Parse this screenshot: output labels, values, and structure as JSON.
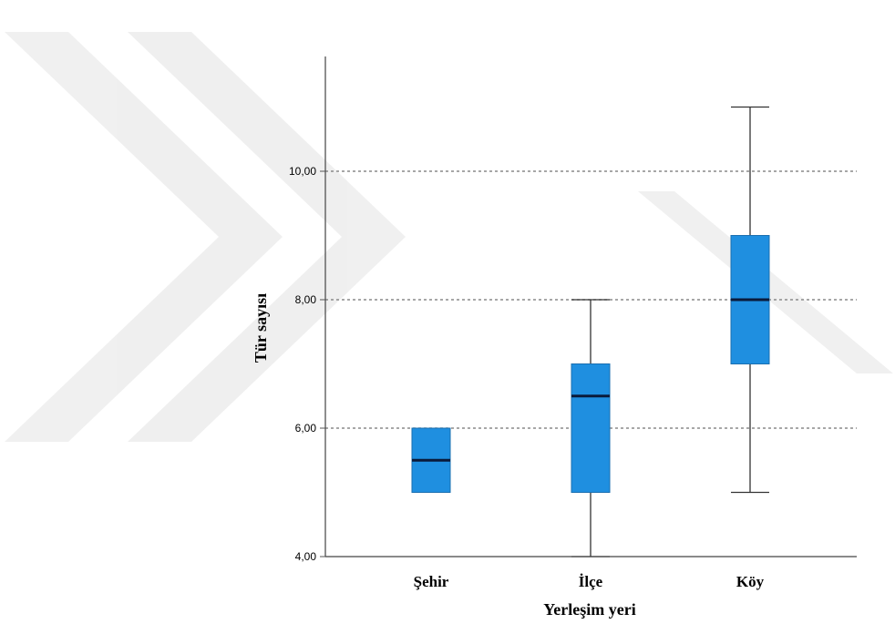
{
  "chart_data": {
    "type": "boxplot",
    "title": "",
    "xlabel": "Yerleşim yeri",
    "ylabel": "Tür sayısı",
    "ylim": [
      4,
      11.6
    ],
    "yticks": [
      4,
      6,
      8,
      10
    ],
    "ytick_labels": [
      "4,00",
      "6,00",
      "8,00",
      "10,00"
    ],
    "grid": true,
    "box_color": "#1f8fe0",
    "median_color": "#0a1a3a",
    "categories": [
      "Şehir",
      "İlçe",
      "Köy"
    ],
    "series": [
      {
        "category": "Şehir",
        "min": 5,
        "q1": 5,
        "median": 5.5,
        "q3": 6,
        "max": 6
      },
      {
        "category": "İlçe",
        "min": 4,
        "q1": 5,
        "median": 6.5,
        "q3": 7,
        "max": 8
      },
      {
        "category": "Köy",
        "min": 5,
        "q1": 7,
        "median": 8,
        "q3": 9,
        "max": 11
      }
    ]
  }
}
